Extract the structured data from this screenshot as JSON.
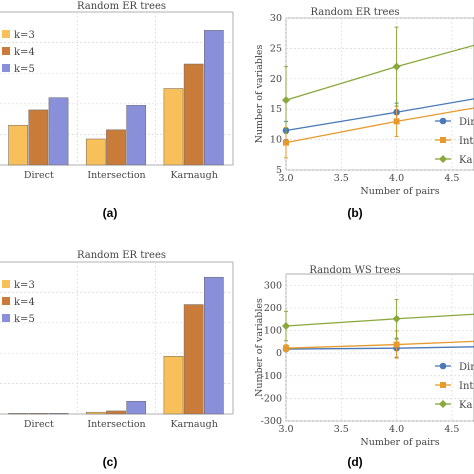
{
  "chart_data": [
    {
      "panel": "a",
      "type": "bar",
      "title": "Random ER trees",
      "categories": [
        "Direct",
        "Intersection",
        "Karnaugh"
      ],
      "series": [
        {
          "name": "k=3",
          "values": [
            1.3,
            0.85,
            2.5
          ],
          "color": "#f7c05a"
        },
        {
          "name": "k=4",
          "values": [
            1.8,
            1.15,
            3.3
          ],
          "color": "#c97c3a"
        },
        {
          "name": "k=5",
          "values": [
            2.2,
            1.95,
            4.4
          ],
          "color": "#8a8fd9"
        }
      ],
      "ylim": [
        0,
        5
      ],
      "grid": true,
      "legend": "top-left"
    },
    {
      "panel": "b",
      "type": "line",
      "title": "Random ER trees",
      "xlabel": "Number of pairs",
      "ylabel": "Number of variables",
      "xlim": [
        3.0,
        4.7
      ],
      "ylim": [
        5,
        30
      ],
      "xticks": [
        "3.0",
        "3.5",
        "4.0",
        "4.5"
      ],
      "yticks": [
        "5",
        "10",
        "15",
        "20",
        "25",
        "30"
      ],
      "series": [
        {
          "name": "Direct",
          "x": [
            3,
            4,
            4.7
          ],
          "y": [
            11.5,
            14.5,
            16.7
          ],
          "err": [
            1.5,
            1.5,
            0
          ],
          "color": "#4a78b8",
          "marker": "circle"
        },
        {
          "name": "Intersection",
          "x": [
            3,
            4,
            4.7
          ],
          "y": [
            9.5,
            13,
            15.2
          ],
          "err": [
            2.5,
            2.5,
            0
          ],
          "color": "#e69a2e",
          "marker": "square"
        },
        {
          "name": "Karnaugh",
          "x": [
            3,
            4,
            4.7
          ],
          "y": [
            16.5,
            22,
            25.5
          ],
          "err": [
            5.5,
            6.5,
            0
          ],
          "color": "#8aa83c",
          "marker": "diamond"
        }
      ],
      "legend_labels": [
        "Dir",
        "Int",
        "Ka"
      ],
      "grid": true,
      "legend": "right"
    },
    {
      "panel": "c",
      "type": "bar",
      "title": "Random ER trees",
      "categories": [
        "Direct",
        "Intersection",
        "Karnaugh"
      ],
      "series": [
        {
          "name": "k=3",
          "values": [
            1,
            3,
            95
          ],
          "color": "#f7c05a"
        },
        {
          "name": "k=4",
          "values": [
            1,
            5,
            180
          ],
          "color": "#c97c3a"
        },
        {
          "name": "k=5",
          "values": [
            1,
            21,
            225
          ],
          "color": "#8a8fd9"
        }
      ],
      "ylim": [
        0,
        250
      ],
      "grid": true,
      "legend": "top-left"
    },
    {
      "panel": "d",
      "type": "line",
      "title": "Random WS trees",
      "xlabel": "Number of pairs",
      "ylabel": "Number of variables",
      "xlim": [
        3.0,
        4.7
      ],
      "ylim": [
        -300,
        350
      ],
      "xticks": [
        "3.0",
        "3.5",
        "4.0",
        "4.5"
      ],
      "yticks": [
        "-300",
        "-200",
        "-100",
        "0",
        "100",
        "200",
        "300"
      ],
      "series": [
        {
          "name": "Direct",
          "x": [
            3,
            4,
            4.7
          ],
          "y": [
            18,
            22,
            28
          ],
          "err": [
            8,
            40,
            0
          ],
          "color": "#4a78b8",
          "marker": "circle"
        },
        {
          "name": "Intersection",
          "x": [
            3,
            4,
            4.7
          ],
          "y": [
            22,
            38,
            52
          ],
          "err": [
            15,
            60,
            0
          ],
          "color": "#e69a2e",
          "marker": "square"
        },
        {
          "name": "Karnaugh",
          "x": [
            3,
            4,
            4.7
          ],
          "y": [
            120,
            152,
            172
          ],
          "err": [
            65,
            85,
            0
          ],
          "color": "#8aa83c",
          "marker": "diamond"
        }
      ],
      "legend_labels": [
        "Din",
        "Int",
        "Ka"
      ],
      "grid": true,
      "legend": "right"
    }
  ],
  "captions": [
    "(a)",
    "(b)",
    "(c)",
    "(d)"
  ]
}
